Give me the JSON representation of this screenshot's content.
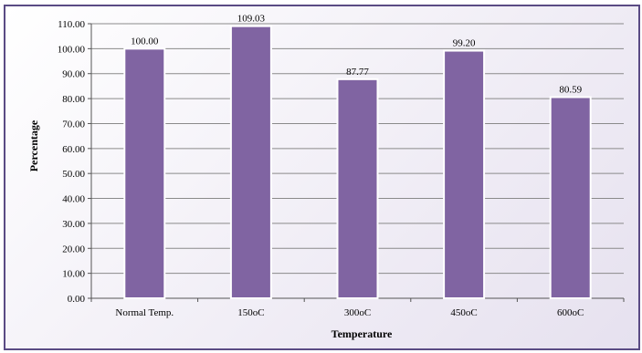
{
  "chart_data": {
    "type": "bar",
    "title": "",
    "xlabel": "Temperature",
    "ylabel": "Percentage",
    "categories": [
      "Normal Temp.",
      "150oC",
      "300oC",
      "450oC",
      "600oC"
    ],
    "values": [
      100.0,
      109.03,
      87.77,
      99.2,
      80.59
    ],
    "data_labels": [
      "100.00",
      "109.03",
      "87.77",
      "99.20",
      "80.59"
    ],
    "ylim": [
      0,
      110
    ],
    "yticks": [
      0,
      10,
      20,
      30,
      40,
      50,
      60,
      70,
      80,
      90,
      100,
      110
    ],
    "ytick_labels": [
      "0.00",
      "10.00",
      "20.00",
      "30.00",
      "40.00",
      "50.00",
      "60.00",
      "70.00",
      "80.00",
      "90.00",
      "100.00",
      "110.00"
    ],
    "grid": true,
    "legend": "none",
    "colors": {
      "bar": "#8064a2",
      "frame": "#5a4b84",
      "grid": "#8a8a8a"
    }
  }
}
